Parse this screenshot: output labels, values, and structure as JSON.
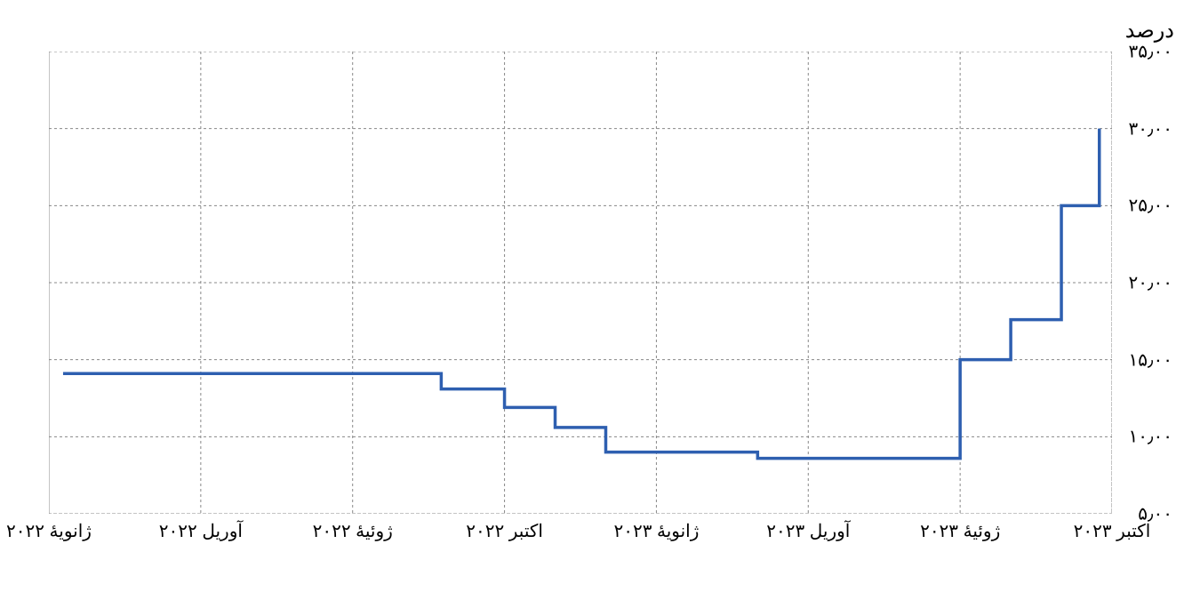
{
  "chart": {
    "type": "step-line",
    "title": "درصد",
    "title_fontsize": 24,
    "background_color": "#ffffff",
    "grid_color": "#888888",
    "grid_dash": "3,3",
    "border_color": "#888888",
    "line_color": "#2e5fb0",
    "line_width": 3.5,
    "y": {
      "min": 5,
      "max": 35,
      "ticks": [
        5,
        10,
        15,
        20,
        25,
        30,
        35
      ],
      "tick_labels": [
        "۵٫۰۰",
        "۱۰٫۰۰",
        "۱۵٫۰۰",
        "۲۰٫۰۰",
        "۲۵٫۰۰",
        "۳۰٫۰۰",
        "۳۵٫۰۰"
      ],
      "tick_step": 5
    },
    "x": {
      "min": 0,
      "max": 21,
      "ticks": [
        0,
        3,
        6,
        9,
        12,
        15,
        18,
        21
      ],
      "tick_labels": [
        "ژانویهٔ ۲۰۲۲",
        "آوریل ۲۰۲۲",
        "ژوئیهٔ ۲۰۲۲",
        "اکتبر ۲۰۲۲",
        "ژانویهٔ ۲۰۲۳",
        "آوریل ۲۰۲۳",
        "ژوئیهٔ ۲۰۲۳",
        "اکتبر ۲۰۲۳"
      ]
    },
    "series": {
      "points": [
        {
          "x": 0.28,
          "y": 14.1
        },
        {
          "x": 7.75,
          "y": 14.1
        },
        {
          "x": 7.75,
          "y": 13.1
        },
        {
          "x": 9.0,
          "y": 13.1
        },
        {
          "x": 9.0,
          "y": 11.9
        },
        {
          "x": 10.0,
          "y": 11.9
        },
        {
          "x": 10.0,
          "y": 10.6
        },
        {
          "x": 11.0,
          "y": 10.6
        },
        {
          "x": 11.0,
          "y": 9.0
        },
        {
          "x": 14.0,
          "y": 9.0
        },
        {
          "x": 14.0,
          "y": 8.6
        },
        {
          "x": 18.0,
          "y": 8.6
        },
        {
          "x": 18.0,
          "y": 15.0
        },
        {
          "x": 19.0,
          "y": 15.0
        },
        {
          "x": 19.0,
          "y": 17.6
        },
        {
          "x": 20.0,
          "y": 17.6
        },
        {
          "x": 20.0,
          "y": 25.0
        },
        {
          "x": 20.75,
          "y": 25.0
        },
        {
          "x": 20.75,
          "y": 30.0
        }
      ]
    },
    "label_fontsize": 20,
    "text_color": "#000000"
  }
}
